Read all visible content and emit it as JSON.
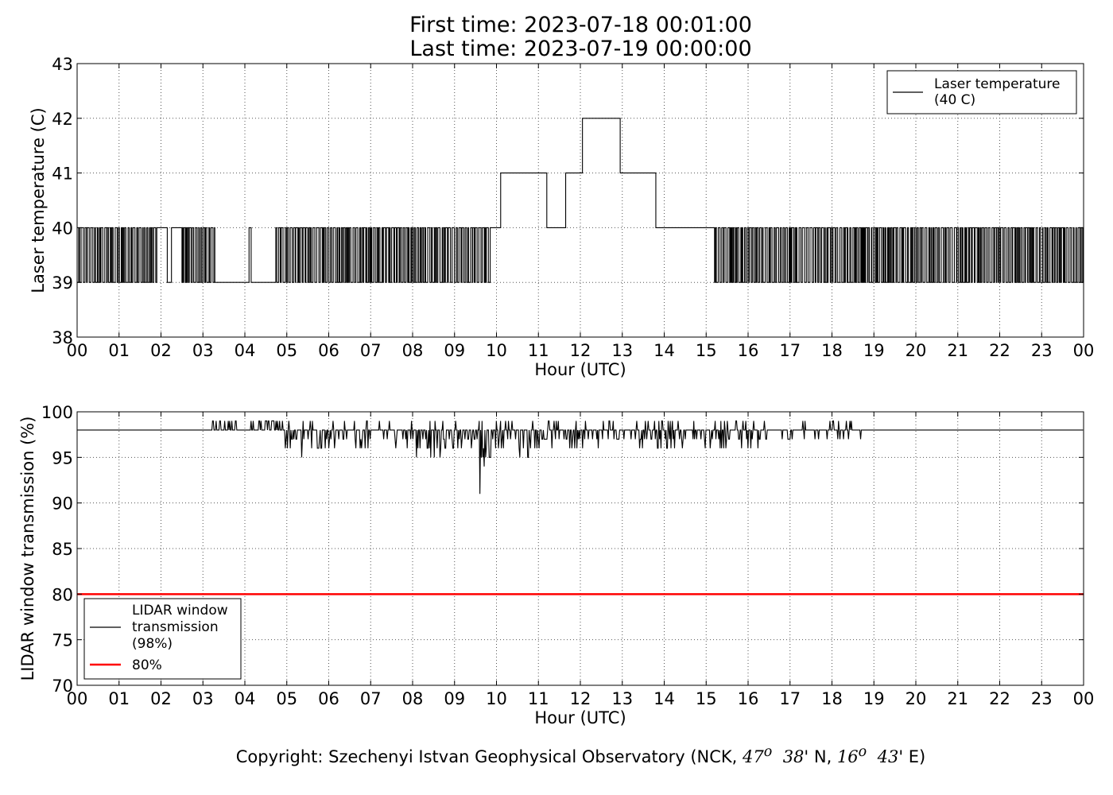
{
  "header": {
    "title_line1": "First time: 2023-07-18 00:01:00",
    "title_line2": "Last time: 2023-07-19 00:00:00"
  },
  "footer": {
    "copyright_prefix": "Copyright: Szechenyi Istvan Geophysical Observatory (NCK, ",
    "lat_deg": "47",
    "lat_min": "38",
    "lat_suffix": "' N, ",
    "lon_deg": "16",
    "lon_min": "43",
    "lon_suffix": "' E)",
    "degree_symbol": "o"
  },
  "colors": {
    "series": "#000000",
    "threshold": "#ff0000",
    "grid": "#555555"
  },
  "chart_data": [
    {
      "type": "line",
      "xlabel": "Hour (UTC)",
      "ylabel": "Laser temperature (C)",
      "xlim": [
        0,
        24
      ],
      "ylim": [
        38,
        43
      ],
      "xticks": [
        "00",
        "01",
        "02",
        "03",
        "04",
        "05",
        "06",
        "07",
        "08",
        "09",
        "10",
        "11",
        "12",
        "13",
        "14",
        "15",
        "16",
        "17",
        "18",
        "19",
        "20",
        "21",
        "22",
        "23",
        "00"
      ],
      "yticks": [
        38,
        39,
        40,
        41,
        42,
        43
      ],
      "grid": true,
      "legend_position": "top-right",
      "series": [
        {
          "name": "Laser temperature\n(40 C)",
          "color": "#000000",
          "segments": [
            {
              "x0": 0.0,
              "x1": 1.9,
              "mode": "toggle",
              "values": [
                39,
                40
              ]
            },
            {
              "x0": 1.9,
              "x1": 2.15,
              "mode": "level",
              "value": 40
            },
            {
              "x0": 2.15,
              "x1": 2.25,
              "mode": "level",
              "value": 39
            },
            {
              "x0": 2.25,
              "x1": 2.5,
              "mode": "level",
              "value": 40
            },
            {
              "x0": 2.5,
              "x1": 3.3,
              "mode": "toggle",
              "values": [
                39,
                40
              ]
            },
            {
              "x0": 3.3,
              "x1": 4.1,
              "mode": "level",
              "value": 39
            },
            {
              "x0": 4.1,
              "x1": 4.15,
              "mode": "level",
              "value": 40
            },
            {
              "x0": 4.15,
              "x1": 4.7,
              "mode": "level",
              "value": 39
            },
            {
              "x0": 4.7,
              "x1": 9.85,
              "mode": "toggle",
              "values": [
                39,
                40
              ]
            },
            {
              "x0": 9.85,
              "x1": 10.1,
              "mode": "level",
              "value": 40
            },
            {
              "x0": 10.1,
              "x1": 11.2,
              "mode": "level",
              "value": 41
            },
            {
              "x0": 11.2,
              "x1": 11.65,
              "mode": "level",
              "value": 40
            },
            {
              "x0": 11.65,
              "x1": 12.05,
              "mode": "level",
              "value": 41
            },
            {
              "x0": 12.05,
              "x1": 12.95,
              "mode": "level",
              "value": 42
            },
            {
              "x0": 12.95,
              "x1": 13.8,
              "mode": "level",
              "value": 41
            },
            {
              "x0": 13.8,
              "x1": 15.2,
              "mode": "level",
              "value": 40
            },
            {
              "x0": 15.2,
              "x1": 24.0,
              "mode": "toggle",
              "values": [
                39,
                40
              ]
            }
          ]
        }
      ]
    },
    {
      "type": "line",
      "xlabel": "Hour (UTC)",
      "ylabel": "LIDAR window transmission (%)",
      "xlim": [
        0,
        24
      ],
      "ylim": [
        70,
        100
      ],
      "xticks": [
        "00",
        "01",
        "02",
        "03",
        "04",
        "05",
        "06",
        "07",
        "08",
        "09",
        "10",
        "11",
        "12",
        "13",
        "14",
        "15",
        "16",
        "17",
        "18",
        "19",
        "20",
        "21",
        "22",
        "23",
        "00"
      ],
      "yticks": [
        70,
        75,
        80,
        85,
        90,
        95,
        100
      ],
      "grid": true,
      "legend_position": "lower-left",
      "series": [
        {
          "name": "LIDAR window\ntransmission\n(98%)",
          "color": "#000000",
          "baseline": 98,
          "noise_ranges": [
            {
              "x0": 3.2,
              "x1": 4.8,
              "min": 98,
              "max": 99
            },
            {
              "x0": 4.8,
              "x1": 6.5,
              "min": 96,
              "max": 99
            },
            {
              "x0": 6.5,
              "x1": 8.0,
              "min": 96,
              "max": 99
            },
            {
              "x0": 8.0,
              "x1": 10.8,
              "min": 95,
              "max": 99
            },
            {
              "x0": 10.8,
              "x1": 16.5,
              "min": 96,
              "max": 99
            },
            {
              "x0": 16.8,
              "x1": 18.7,
              "min": 97,
              "max": 99
            }
          ],
          "spikes": [
            {
              "x": 5.35,
              "value": 95
            },
            {
              "x": 9.6,
              "value": 91
            },
            {
              "x": 9.7,
              "value": 94
            }
          ]
        },
        {
          "name": "80%",
          "color": "#ff0000",
          "constant": 80
        }
      ]
    }
  ]
}
